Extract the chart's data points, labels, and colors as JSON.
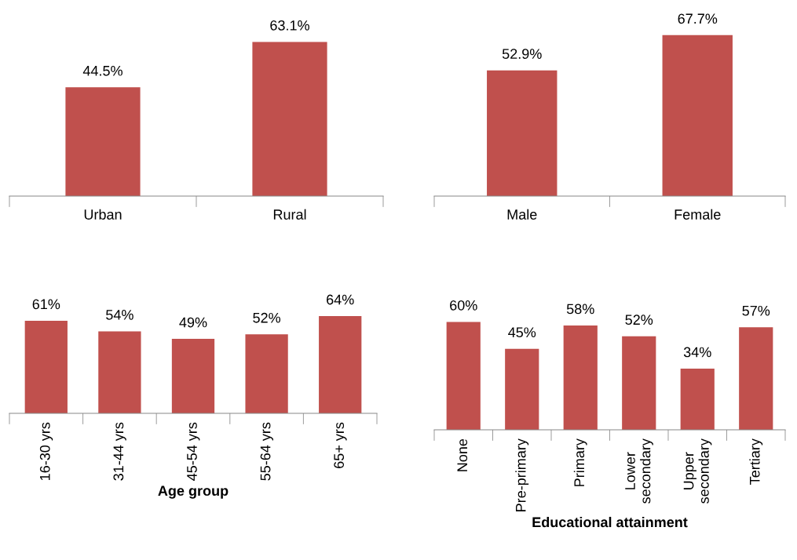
{
  "chart_data": [
    {
      "type": "bar",
      "categories": [
        "Urban",
        "Rural"
      ],
      "values": [
        44.5,
        63.1
      ],
      "value_labels": [
        "44.5%",
        "63.1%"
      ],
      "color": "#c0504d"
    },
    {
      "type": "bar",
      "categories": [
        "Male",
        "Female"
      ],
      "values": [
        52.9,
        67.7
      ],
      "value_labels": [
        "52.9%",
        "67.7%"
      ],
      "color": "#c0504d"
    },
    {
      "type": "bar",
      "categories": [
        "16-30 yrs",
        "31-44 yrs",
        "45-54 yrs",
        "55-64 yrs",
        "65+ yrs"
      ],
      "values": [
        61,
        54,
        49,
        52,
        64
      ],
      "value_labels": [
        "61%",
        "54%",
        "49%",
        "52%",
        "64%"
      ],
      "color": "#c0504d",
      "xlabel": "Age group"
    },
    {
      "type": "bar",
      "categories": [
        "None",
        "Pre-primary",
        "Primary",
        "Lower\nsecondary",
        "Upper\nsecondary",
        "Tertiary"
      ],
      "values": [
        60,
        45,
        58,
        52,
        34,
        57
      ],
      "value_labels": [
        "60%",
        "45%",
        "58%",
        "52%",
        "34%",
        "57%"
      ],
      "color": "#c0504d",
      "xlabel": "Educational attainment"
    }
  ]
}
